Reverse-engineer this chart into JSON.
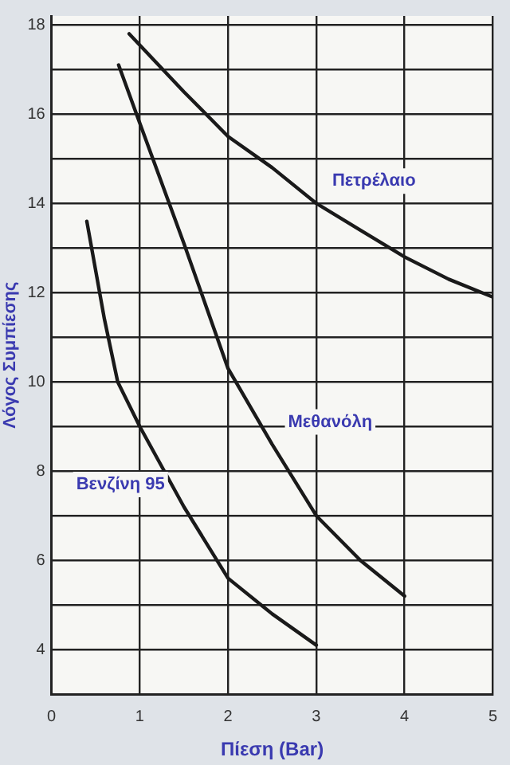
{
  "chart_data": {
    "type": "line",
    "xlabel": "Πίεση (Bar)",
    "ylabel": "Λόγος Συμπίεσης",
    "xlim": [
      0,
      5
    ],
    "xticks": [
      0,
      1,
      2,
      3,
      4,
      5
    ],
    "ylim": [
      3,
      18.2
    ],
    "yticks": [
      {
        "value": 3,
        "label": null
      },
      4,
      {
        "value": 5,
        "label": null
      },
      6,
      {
        "value": 7,
        "label": null
      },
      8,
      {
        "value": 9,
        "label": null
      },
      10,
      {
        "value": 11,
        "label": null
      },
      12,
      {
        "value": 13,
        "label": null
      },
      14,
      {
        "value": 15,
        "label": null
      },
      16,
      {
        "value": 17,
        "label": null
      },
      18
    ],
    "grid": true,
    "legend": false,
    "marker": "none",
    "line_style": "solid",
    "series": [
      {
        "name": "Πετρέλαιο",
        "color": "#1a1a1a",
        "x": [
          0.88,
          1.5,
          2,
          2.5,
          3,
          3.5,
          4,
          4.5,
          5
        ],
        "values": [
          17.8,
          16.5,
          15.5,
          14.8,
          14.0,
          13.4,
          12.8,
          12.3,
          11.9
        ]
      },
      {
        "name": "Μεθανόλη",
        "color": "#1a1a1a",
        "x": [
          0.76,
          1,
          1.5,
          2,
          2.5,
          3,
          3.5,
          4
        ],
        "values": [
          17.1,
          15.8,
          13.1,
          10.3,
          8.6,
          7.0,
          6.0,
          5.2
        ]
      },
      {
        "name": "Βενζίνη 95",
        "color": "#1a1a1a",
        "x": [
          0.4,
          0.6,
          0.75,
          1,
          1.5,
          2,
          2.5,
          3
        ],
        "values": [
          13.6,
          11.4,
          10.0,
          9.0,
          7.2,
          5.6,
          4.8,
          4.1
        ]
      }
    ]
  }
}
